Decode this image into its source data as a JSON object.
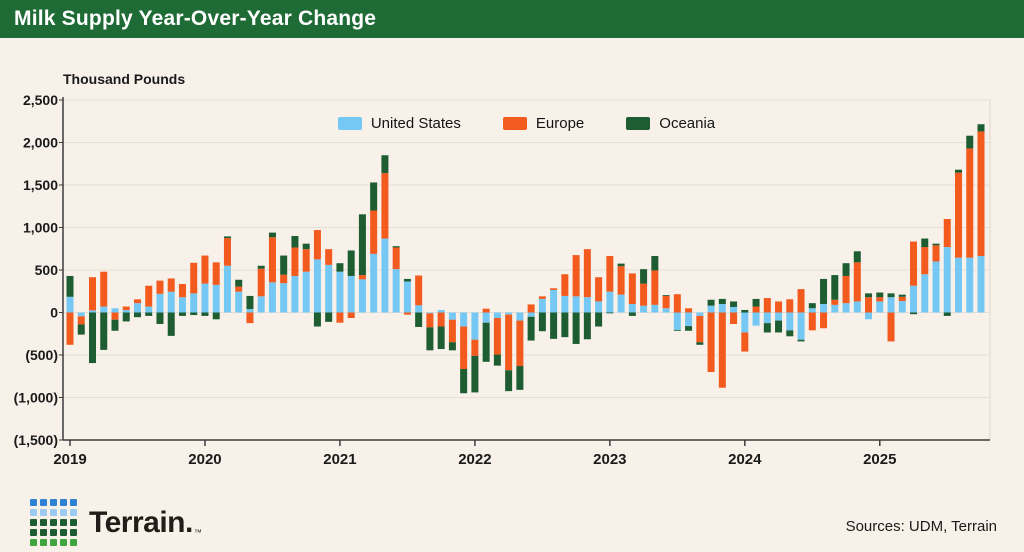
{
  "header": {
    "title": "Milk Supply Year-Over-Year Change"
  },
  "chart_data": {
    "type": "bar",
    "stacked": true,
    "title": "Milk Supply Year-Over-Year Change",
    "ylabel": "Thousand Pounds",
    "ylim": [
      -1500,
      2500
    ],
    "grid": true,
    "legend_position": "top-center",
    "start_month": "2019-01",
    "months_count": 82,
    "x_tick_labels": [
      "2019",
      "2020",
      "2021",
      "2022",
      "2023",
      "2024",
      "2025"
    ],
    "y_ticks": [
      {
        "v": 2500,
        "label": "2,500"
      },
      {
        "v": 2000,
        "label": "2,000"
      },
      {
        "v": 1500,
        "label": "1,500"
      },
      {
        "v": 1000,
        "label": "1,000"
      },
      {
        "v": 500,
        "label": "500"
      },
      {
        "v": 0,
        "label": "0"
      },
      {
        "v": -500,
        "label": "(500)"
      },
      {
        "v": -1000,
        "label": "(1,000)"
      },
      {
        "v": -1500,
        "label": "(1,500)"
      }
    ],
    "series": [
      {
        "name": "United States",
        "color": "#76C8F4",
        "values": [
          185,
          -45,
          25,
          70,
          50,
          30,
          110,
          70,
          220,
          245,
          180,
          225,
          340,
          325,
          550,
          245,
          40,
          190,
          355,
          345,
          430,
          480,
          625,
          560,
          480,
          430,
          390,
          690,
          870,
          510,
          365,
          85,
          -10,
          30,
          -85,
          -165,
          -320,
          -120,
          -65,
          -25,
          -95,
          -50,
          160,
          265,
          195,
          190,
          180,
          130,
          245,
          210,
          100,
          80,
          90,
          50,
          -205,
          -160,
          -40,
          80,
          100,
          65,
          -235,
          -155,
          -125,
          -95,
          -210,
          -320,
          50,
          100,
          90,
          110,
          130,
          -80,
          130,
          180,
          135,
          315,
          450,
          600,
          770,
          645,
          645,
          665
        ]
      },
      {
        "name": "Europe",
        "color": "#F25A1E",
        "values": [
          -380,
          -95,
          390,
          410,
          -85,
          40,
          45,
          245,
          155,
          155,
          155,
          360,
          330,
          265,
          325,
          60,
          -125,
          325,
          530,
          100,
          335,
          265,
          345,
          185,
          -120,
          -65,
          50,
          510,
          770,
          255,
          -25,
          350,
          -165,
          -165,
          -265,
          -500,
          -190,
          45,
          -430,
          -655,
          -535,
          95,
          30,
          20,
          255,
          485,
          565,
          285,
          420,
          335,
          360,
          260,
          405,
          145,
          215,
          50,
          -310,
          -700,
          -885,
          -135,
          -225,
          70,
          170,
          130,
          155,
          275,
          -210,
          -185,
          60,
          320,
          460,
          180,
          50,
          -340,
          50,
          520,
          320,
          190,
          330,
          1000,
          1285,
          1465
        ]
      },
      {
        "name": "Oceania",
        "color": "#1E5C31",
        "values": [
          245,
          -120,
          -595,
          -440,
          -130,
          -105,
          -55,
          -40,
          -135,
          -275,
          -40,
          -30,
          -40,
          -80,
          20,
          80,
          155,
          35,
          55,
          225,
          135,
          65,
          -165,
          -110,
          100,
          300,
          715,
          330,
          210,
          15,
          30,
          -170,
          -270,
          -265,
          -95,
          -285,
          -430,
          -460,
          -130,
          -245,
          -280,
          -280,
          -220,
          -310,
          -290,
          -370,
          -315,
          -165,
          -10,
          30,
          -40,
          170,
          170,
          10,
          -10,
          -55,
          -30,
          70,
          60,
          65,
          30,
          90,
          -110,
          -140,
          -70,
          -20,
          60,
          295,
          290,
          150,
          130,
          45,
          55,
          45,
          25,
          -20,
          100,
          20,
          -40,
          35,
          150,
          85
        ]
      }
    ]
  },
  "footer": {
    "brand": "Terrain.",
    "brand_mark": "™",
    "sources": "Sources: UDM, Terrain",
    "logo_row_colors": [
      "#2E82D4",
      "#9CCAF0",
      "#1E5C31",
      "#1E5C31",
      "#3FA53F"
    ]
  },
  "colors": {
    "header_bg": "#1E6B36",
    "background": "#F8F1EA",
    "gridline": "#E5DFD6",
    "axis": "#3C3C3C"
  }
}
